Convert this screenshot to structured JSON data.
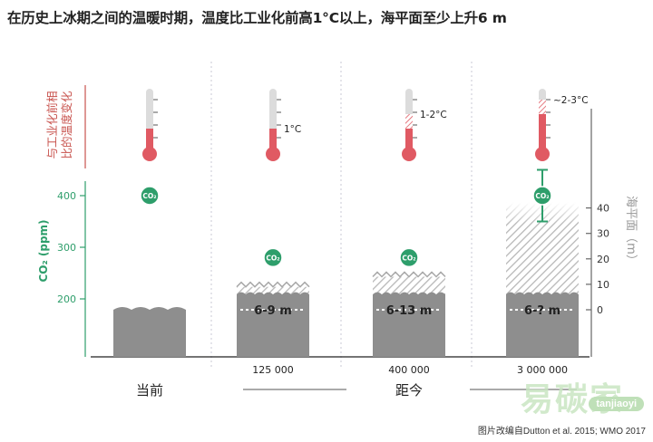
{
  "headline": "在历史上冰期之间的温暖时期，温度比工业化前高1°C以上，海平面至少上升6 m",
  "temp_axis_label": "与工业化前相比的温度变化",
  "co2_axis_label": "CO₂ (ppm)",
  "sea_axis_label": "海平面（m）",
  "co2_badge": "CO₂",
  "time_axis_label": "距今",
  "source": "图片改编自Dutton et al. 2015; WMO 2017",
  "watermark": "易碳家",
  "watermark_badge": "tanjiaoyi",
  "colors": {
    "co2": "#2e9e6b",
    "thermo": "#e05a63",
    "temp_axis": "#c8534e",
    "column": "#8e8e8e",
    "text": "#222222"
  },
  "chart_data": {
    "type": "bar",
    "categories": [
      "当前",
      "125 000",
      "400 000",
      "3 000 000"
    ],
    "temperature_change_labels": [
      "",
      "1°C",
      "1-2°C",
      "~2-3°C"
    ],
    "temperature_change_C_low": [
      1,
      1,
      1,
      2
    ],
    "temperature_change_C_high": [
      1,
      1,
      2,
      3
    ],
    "co2_ppm": [
      400,
      280,
      280,
      400
    ],
    "co2_ppm_error_range": [
      null,
      null,
      null,
      [
        350,
        450
      ]
    ],
    "sea_level_labels": [
      "",
      "6-9 m",
      "6-13 m",
      "6-? m"
    ],
    "sea_level_m_low": [
      0,
      6,
      6,
      6
    ],
    "sea_level_m_high": [
      0,
      9,
      13,
      42
    ],
    "co2_axis": {
      "label": "CO₂ (ppm)",
      "ticks": [
        200,
        300,
        400
      ]
    },
    "sea_axis": {
      "label": "海平面（m）",
      "ticks": [
        0,
        10,
        20,
        30,
        40
      ]
    },
    "grid": false
  }
}
